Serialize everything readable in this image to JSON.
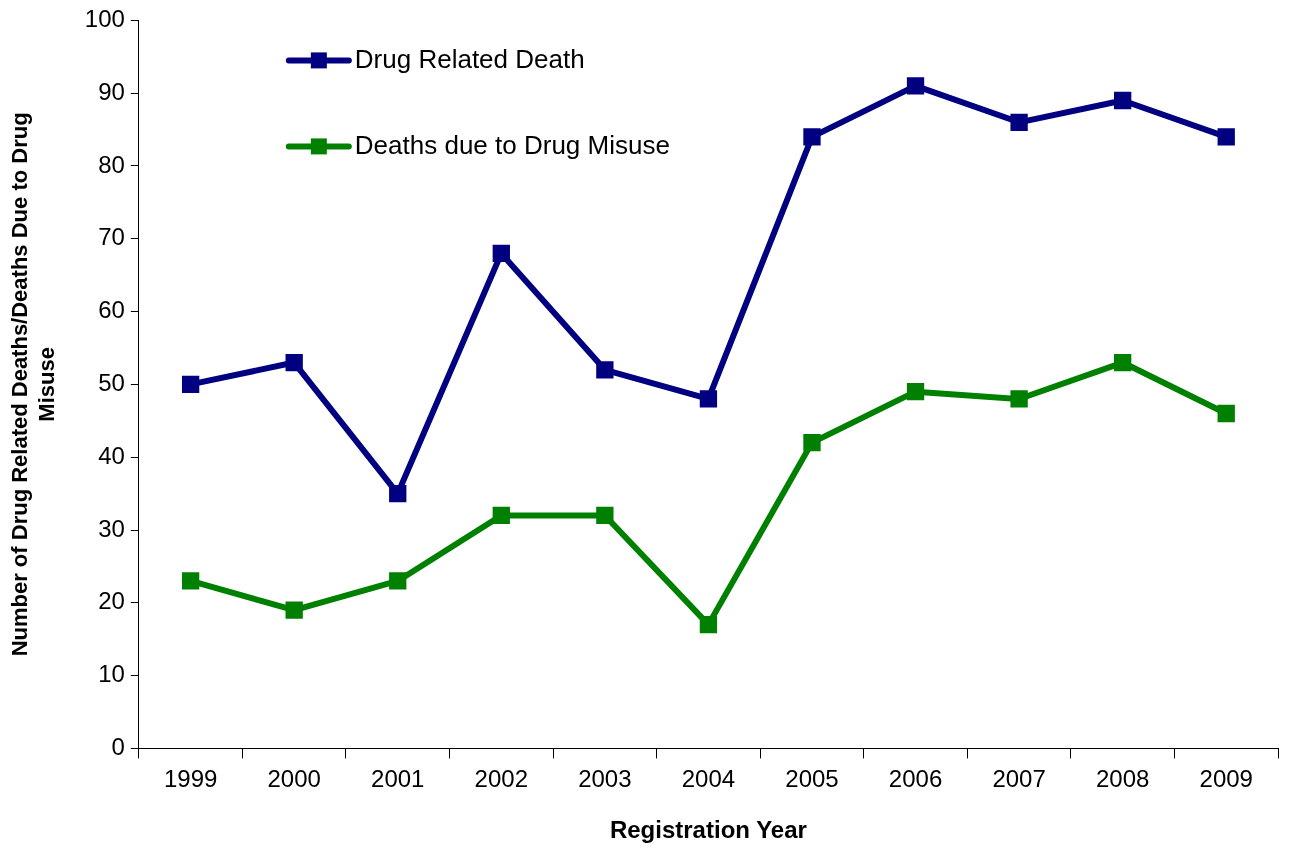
{
  "chart_data": {
    "type": "line",
    "xlabel": "Registration Year",
    "ylabel": "Number of Drug Related Deaths/Deaths Due to Drug Misuse",
    "categories": [
      "1999",
      "2000",
      "2001",
      "2002",
      "2003",
      "2004",
      "2005",
      "2006",
      "2007",
      "2008",
      "2009"
    ],
    "series": [
      {
        "name": "Drug Related Death",
        "color": "#000080",
        "values": [
          50,
          53,
          35,
          68,
          52,
          48,
          84,
          91,
          86,
          89,
          84
        ]
      },
      {
        "name": "Deaths due to Drug Misuse",
        "color": "#008000",
        "values": [
          23,
          19,
          23,
          32,
          32,
          17,
          42,
          49,
          48,
          53,
          46
        ]
      }
    ],
    "ylim": [
      0,
      100
    ],
    "yticks": [
      0,
      10,
      20,
      30,
      40,
      50,
      60,
      70,
      80,
      90,
      100
    ],
    "grid": false,
    "legend": "top left",
    "marker": "square",
    "line_style": "solid"
  }
}
